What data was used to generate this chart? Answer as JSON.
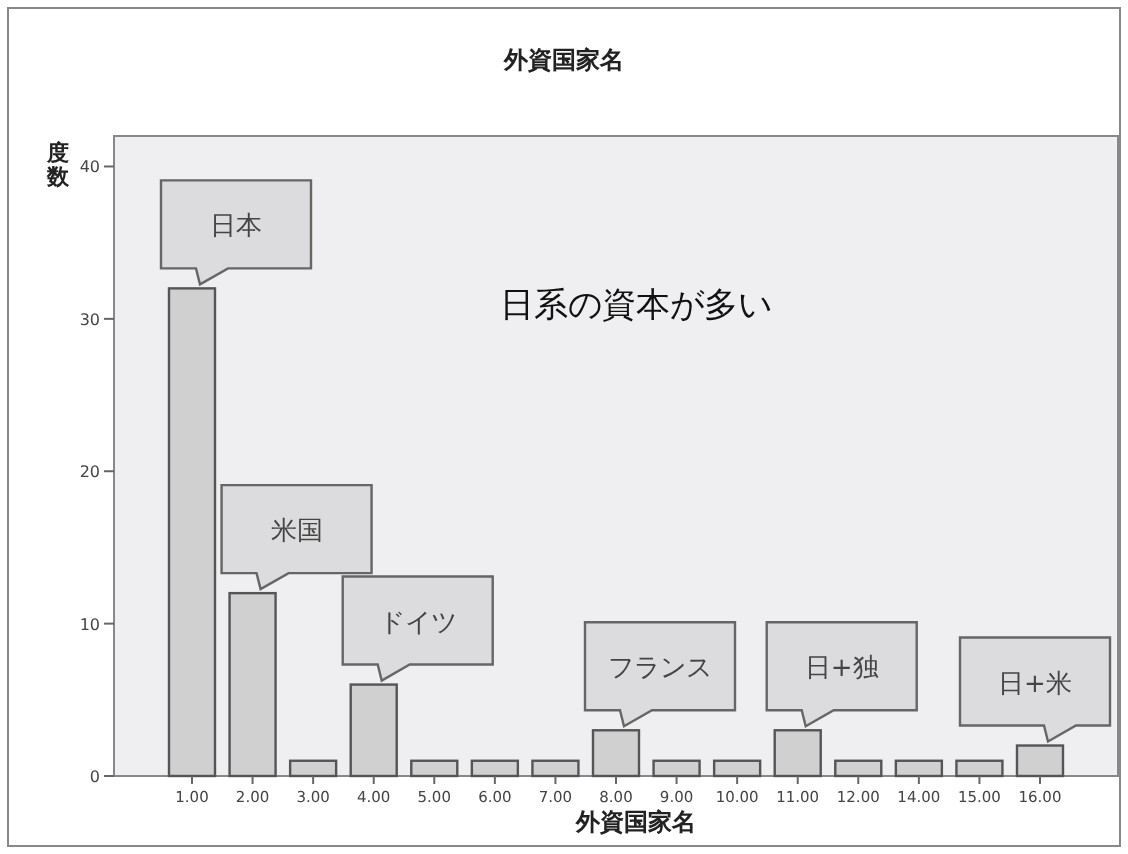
{
  "chart_data": {
    "type": "bar",
    "title": "外資国家名",
    "xlabel": "外資国家名",
    "ylabel": "度数",
    "categories": [
      "1.00",
      "2.00",
      "3.00",
      "4.00",
      "5.00",
      "6.00",
      "7.00",
      "8.00",
      "9.00",
      "10.00",
      "11.00",
      "12.00",
      "14.00",
      "15.00",
      "16.00"
    ],
    "values": [
      32,
      12,
      1,
      6,
      1,
      1,
      1,
      3,
      1,
      1,
      3,
      1,
      1,
      1,
      2
    ],
    "color": "#d0d0d0",
    "ylim": [
      0,
      42
    ],
    "yticks": [
      0,
      10,
      20,
      30,
      40
    ],
    "annotations": [
      {
        "text": "日本",
        "x": "1.00",
        "y": 32
      },
      {
        "text": "米国",
        "x": "2.00",
        "y": 12
      },
      {
        "text": "ドイツ",
        "x": "4.00",
        "y": 6
      },
      {
        "text": "フランス",
        "x": "8.00",
        "y": 3
      },
      {
        "text": "日+独",
        "x": "11.00",
        "y": 3
      },
      {
        "text": "日+米",
        "x": "16.00",
        "y": 2
      },
      "日系の資本が多い"
    ]
  }
}
